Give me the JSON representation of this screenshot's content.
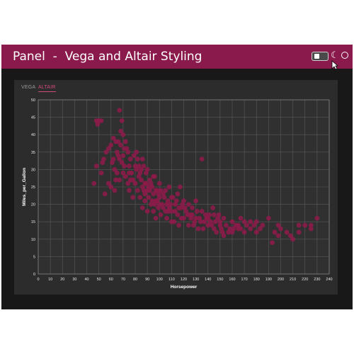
{
  "header": {
    "title": "Panel  -  Vega and Altair Styling",
    "icons": [
      "toggle-switch",
      "moon-icon",
      "sun-icon"
    ]
  },
  "tabs": [
    {
      "label": "VEGA",
      "active": false
    },
    {
      "label": "ALTAIR",
      "active": true
    }
  ],
  "colors": {
    "accent": "#8b1a4c",
    "point": "#8d1a4a",
    "tab_active": "#d2497d",
    "plot_bg": "#303030",
    "grid": "#5a5a5a"
  },
  "chart_data": {
    "type": "scatter",
    "xlabel": "Horsepower",
    "ylabel": "Miles_per_Gallon",
    "xlim": [
      0,
      240
    ],
    "ylim": [
      0,
      50
    ],
    "xticks": [
      0,
      10,
      20,
      30,
      40,
      50,
      60,
      70,
      80,
      90,
      100,
      110,
      120,
      130,
      140,
      150,
      160,
      170,
      180,
      190,
      200,
      210,
      220,
      230,
      240
    ],
    "yticks": [
      0,
      5,
      10,
      15,
      20,
      25,
      30,
      35,
      40,
      45,
      50
    ],
    "grid": true,
    "points": [
      [
        46,
        26
      ],
      [
        48,
        44
      ],
      [
        49,
        43
      ],
      [
        50,
        44
      ],
      [
        52,
        44
      ],
      [
        52,
        29
      ],
      [
        53,
        32
      ],
      [
        54,
        33
      ],
      [
        55,
        23
      ],
      [
        58,
        36
      ],
      [
        60,
        37
      ],
      [
        61,
        32
      ],
      [
        62,
        39
      ],
      [
        63,
        30
      ],
      [
        64,
        38
      ],
      [
        65,
        35
      ],
      [
        65,
        29
      ],
      [
        66,
        34
      ],
      [
        67,
        33
      ],
      [
        67,
        27
      ],
      [
        68,
        37
      ],
      [
        69,
        32
      ],
      [
        70,
        29
      ],
      [
        70,
        34
      ],
      [
        71,
        31
      ],
      [
        72,
        28
      ],
      [
        73,
        36
      ],
      [
        74,
        26
      ],
      [
        75,
        31
      ],
      [
        75,
        24
      ],
      [
        76,
        33
      ],
      [
        77,
        29
      ],
      [
        78,
        27
      ],
      [
        78,
        22
      ],
      [
        80,
        31
      ],
      [
        80,
        26
      ],
      [
        81,
        30
      ],
      [
        82,
        24
      ],
      [
        83,
        28
      ],
      [
        84,
        22
      ],
      [
        85,
        27
      ],
      [
        86,
        19
      ],
      [
        86,
        25
      ],
      [
        87,
        31
      ],
      [
        88,
        21
      ],
      [
        88,
        26
      ],
      [
        89,
        29
      ],
      [
        90,
        24
      ],
      [
        90,
        18
      ],
      [
        91,
        22
      ],
      [
        92,
        27
      ],
      [
        93,
        20
      ],
      [
        94,
        25
      ],
      [
        95,
        23
      ],
      [
        95,
        18
      ],
      [
        96,
        28
      ],
      [
        97,
        16
      ],
      [
        97,
        21
      ],
      [
        98,
        24
      ],
      [
        99,
        19
      ],
      [
        100,
        22
      ],
      [
        100,
        26
      ],
      [
        101,
        17
      ],
      [
        102,
        20
      ],
      [
        103,
        23
      ],
      [
        105,
        18
      ],
      [
        105,
        24
      ],
      [
        106,
        16
      ],
      [
        107,
        21
      ],
      [
        108,
        19
      ],
      [
        110,
        22
      ],
      [
        110,
        18
      ],
      [
        112,
        15
      ],
      [
        113,
        20
      ],
      [
        115,
        17
      ],
      [
        115,
        23
      ],
      [
        116,
        14
      ],
      [
        118,
        19
      ],
      [
        120,
        16
      ],
      [
        120,
        21
      ],
      [
        122,
        18
      ],
      [
        124,
        14
      ],
      [
        125,
        17
      ],
      [
        127,
        19
      ],
      [
        129,
        15
      ],
      [
        130,
        16
      ],
      [
        130,
        21
      ],
      [
        132,
        13
      ],
      [
        135,
        33
      ],
      [
        135,
        18
      ],
      [
        137,
        15
      ],
      [
        138,
        17
      ],
      [
        140,
        14
      ],
      [
        140,
        16
      ],
      [
        142,
        15
      ],
      [
        144,
        19
      ],
      [
        145,
        13
      ],
      [
        145,
        17
      ],
      [
        148,
        16
      ],
      [
        150,
        14
      ],
      [
        150,
        15
      ],
      [
        152,
        12
      ],
      [
        153,
        16
      ],
      [
        155,
        14
      ],
      [
        158,
        13
      ],
      [
        160,
        15
      ],
      [
        160,
        12
      ],
      [
        163,
        14
      ],
      [
        165,
        13
      ],
      [
        165,
        14
      ],
      [
        167,
        16
      ],
      [
        170,
        15
      ],
      [
        170,
        12
      ],
      [
        172,
        14
      ],
      [
        175,
        13
      ],
      [
        175,
        15
      ],
      [
        178,
        14
      ],
      [
        180,
        12
      ],
      [
        180,
        15
      ],
      [
        183,
        13
      ],
      [
        185,
        14
      ],
      [
        190,
        16
      ],
      [
        193,
        9
      ],
      [
        195,
        12
      ],
      [
        198,
        14
      ],
      [
        200,
        13
      ],
      [
        205,
        12
      ],
      [
        208,
        11
      ],
      [
        210,
        10
      ],
      [
        215,
        14
      ],
      [
        215,
        12
      ],
      [
        220,
        14
      ],
      [
        225,
        13
      ],
      [
        225,
        14
      ],
      [
        230,
        16
      ],
      [
        198,
        11
      ],
      [
        153,
        11
      ],
      [
        157,
        12
      ],
      [
        161,
        13
      ],
      [
        167,
        13
      ],
      [
        48,
        31
      ],
      [
        56,
        35
      ],
      [
        58,
        26
      ],
      [
        60,
        25
      ],
      [
        62,
        33
      ],
      [
        63,
        24
      ],
      [
        64,
        27
      ],
      [
        66,
        38
      ],
      [
        67,
        47
      ],
      [
        68,
        41
      ],
      [
        69,
        44
      ],
      [
        70,
        40
      ],
      [
        71,
        36
      ],
      [
        72,
        38
      ],
      [
        74,
        35
      ],
      [
        75,
        29
      ],
      [
        76,
        27
      ],
      [
        79,
        34
      ],
      [
        81,
        35
      ],
      [
        82,
        33
      ],
      [
        83,
        31
      ],
      [
        84,
        29
      ],
      [
        85,
        30
      ],
      [
        86,
        33
      ],
      [
        87,
        24
      ],
      [
        88,
        23
      ],
      [
        89,
        26
      ],
      [
        90,
        30
      ],
      [
        91,
        25
      ],
      [
        92,
        24
      ],
      [
        93,
        26
      ],
      [
        94,
        21
      ],
      [
        95,
        28
      ],
      [
        96,
        20
      ],
      [
        97,
        24
      ],
      [
        98,
        21
      ],
      [
        99,
        23
      ],
      [
        100,
        20
      ],
      [
        101,
        24
      ],
      [
        103,
        19
      ],
      [
        104,
        22
      ],
      [
        106,
        20
      ],
      [
        107,
        18
      ],
      [
        108,
        25
      ],
      [
        109,
        20
      ],
      [
        110,
        15
      ],
      [
        111,
        22
      ],
      [
        113,
        18
      ],
      [
        114,
        21
      ],
      [
        116,
        19
      ],
      [
        117,
        25
      ],
      [
        118,
        16
      ],
      [
        119,
        20
      ],
      [
        121,
        19
      ],
      [
        123,
        17
      ],
      [
        124,
        20
      ],
      [
        126,
        16
      ],
      [
        127,
        17
      ],
      [
        128,
        14
      ],
      [
        131,
        18
      ],
      [
        133,
        16
      ],
      [
        134,
        15
      ],
      [
        136,
        13
      ],
      [
        139,
        16
      ],
      [
        141,
        17
      ],
      [
        143,
        14
      ],
      [
        146,
        15
      ],
      [
        147,
        12
      ],
      [
        149,
        17
      ],
      [
        151,
        13
      ]
    ]
  }
}
